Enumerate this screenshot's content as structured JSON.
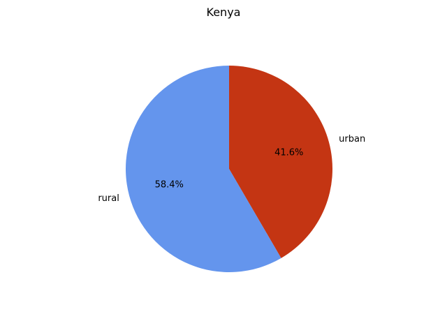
{
  "chart_data": {
    "type": "pie",
    "title": "Kenya",
    "labels": [
      "urban",
      "rural"
    ],
    "values": [
      41.6,
      58.4
    ],
    "percent_labels": [
      "41.6%",
      "58.4%"
    ],
    "colors": [
      "#c43513",
      "#6495ed"
    ],
    "start_angle": 90,
    "direction": "clockwise"
  }
}
